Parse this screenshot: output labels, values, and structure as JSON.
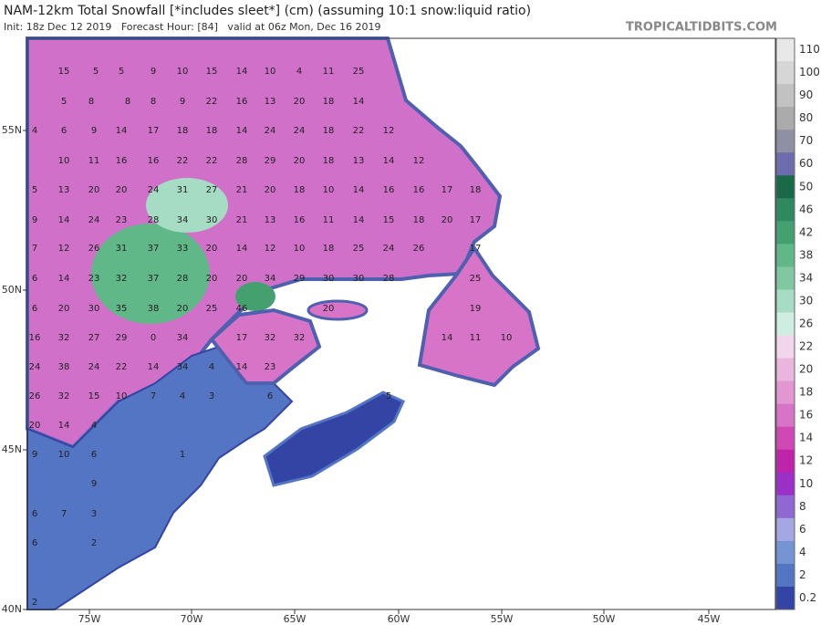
{
  "header": {
    "title": "NAM-12km Total Snowfall [*includes sleet*] (cm) (assuming 10:1 snow:liquid ratio)",
    "subtitle": "Init: 18z Dec 12 2019   Forecast Hour: [84]   valid at 06z Mon, Dec 16 2019",
    "credit": "TROPICALTIDBITS.COM"
  },
  "map": {
    "lon_labels": [
      "75W",
      "70W",
      "65W",
      "60W",
      "55W",
      "50W",
      "45W"
    ],
    "lat_labels": [
      "55N",
      "50N",
      "45N",
      "40N"
    ],
    "rows": [
      [
        15,
        5,
        5,
        9,
        10,
        15,
        14,
        10,
        4,
        11,
        25
      ],
      [
        5,
        8,
        8,
        8,
        9,
        22,
        16,
        13,
        20,
        18,
        14
      ],
      [
        4,
        6,
        9,
        14,
        17,
        18,
        18,
        14,
        24,
        24,
        18,
        22,
        12
      ],
      [
        10,
        11,
        16,
        16,
        22,
        22,
        28,
        29,
        20,
        18,
        13,
        14,
        12
      ],
      [
        5,
        13,
        20,
        20,
        24,
        31,
        27,
        21,
        20,
        18,
        10,
        14,
        16,
        16,
        17,
        18
      ],
      [
        9,
        14,
        24,
        23,
        28,
        34,
        30,
        21,
        13,
        16,
        11,
        14,
        15,
        18,
        20,
        17
      ],
      [
        7,
        12,
        26,
        31,
        37,
        33,
        20,
        14,
        12,
        10,
        18,
        25,
        24,
        26,
        17
      ],
      [
        6,
        14,
        23,
        32,
        37,
        28,
        20,
        20,
        34,
        29,
        30,
        30,
        28,
        25
      ],
      [
        6,
        20,
        30,
        35,
        38,
        20,
        25,
        46,
        20,
        19
      ],
      [
        16,
        32,
        27,
        29,
        0,
        34,
        17,
        32,
        32,
        14,
        11,
        10
      ],
      [
        24,
        38,
        24,
        22,
        14,
        34,
        4,
        14,
        23
      ],
      [
        26,
        32,
        15,
        10,
        7,
        4,
        3,
        6,
        5
      ],
      [
        20,
        14,
        4
      ],
      [
        9,
        10,
        6,
        1
      ],
      [
        9
      ],
      [
        6,
        7,
        3
      ],
      [
        6,
        2
      ],
      [
        2
      ]
    ]
  },
  "legend": {
    "labels": [
      110,
      100,
      90,
      80,
      70,
      60,
      50,
      46,
      42,
      38,
      34,
      30,
      26,
      22,
      20,
      18,
      16,
      14,
      12,
      10,
      8,
      6,
      4,
      2,
      0.2
    ],
    "colors": [
      "#e8e8e8",
      "#d6d6d6",
      "#c2c2c2",
      "#ababab",
      "#9090a4",
      "#6c6cae",
      "#1a6a4a",
      "#2e8a5e",
      "#45a070",
      "#60b888",
      "#80c8a0",
      "#a6dcc4",
      "#cfeee2",
      "#f2d6ec",
      "#eab6de",
      "#e296d2",
      "#d874c8",
      "#d048b4",
      "#c024aa",
      "#9a30c8",
      "#9068d4",
      "#a4a8e2",
      "#7494d4",
      "#5474c4",
      "#3444a4"
    ]
  }
}
